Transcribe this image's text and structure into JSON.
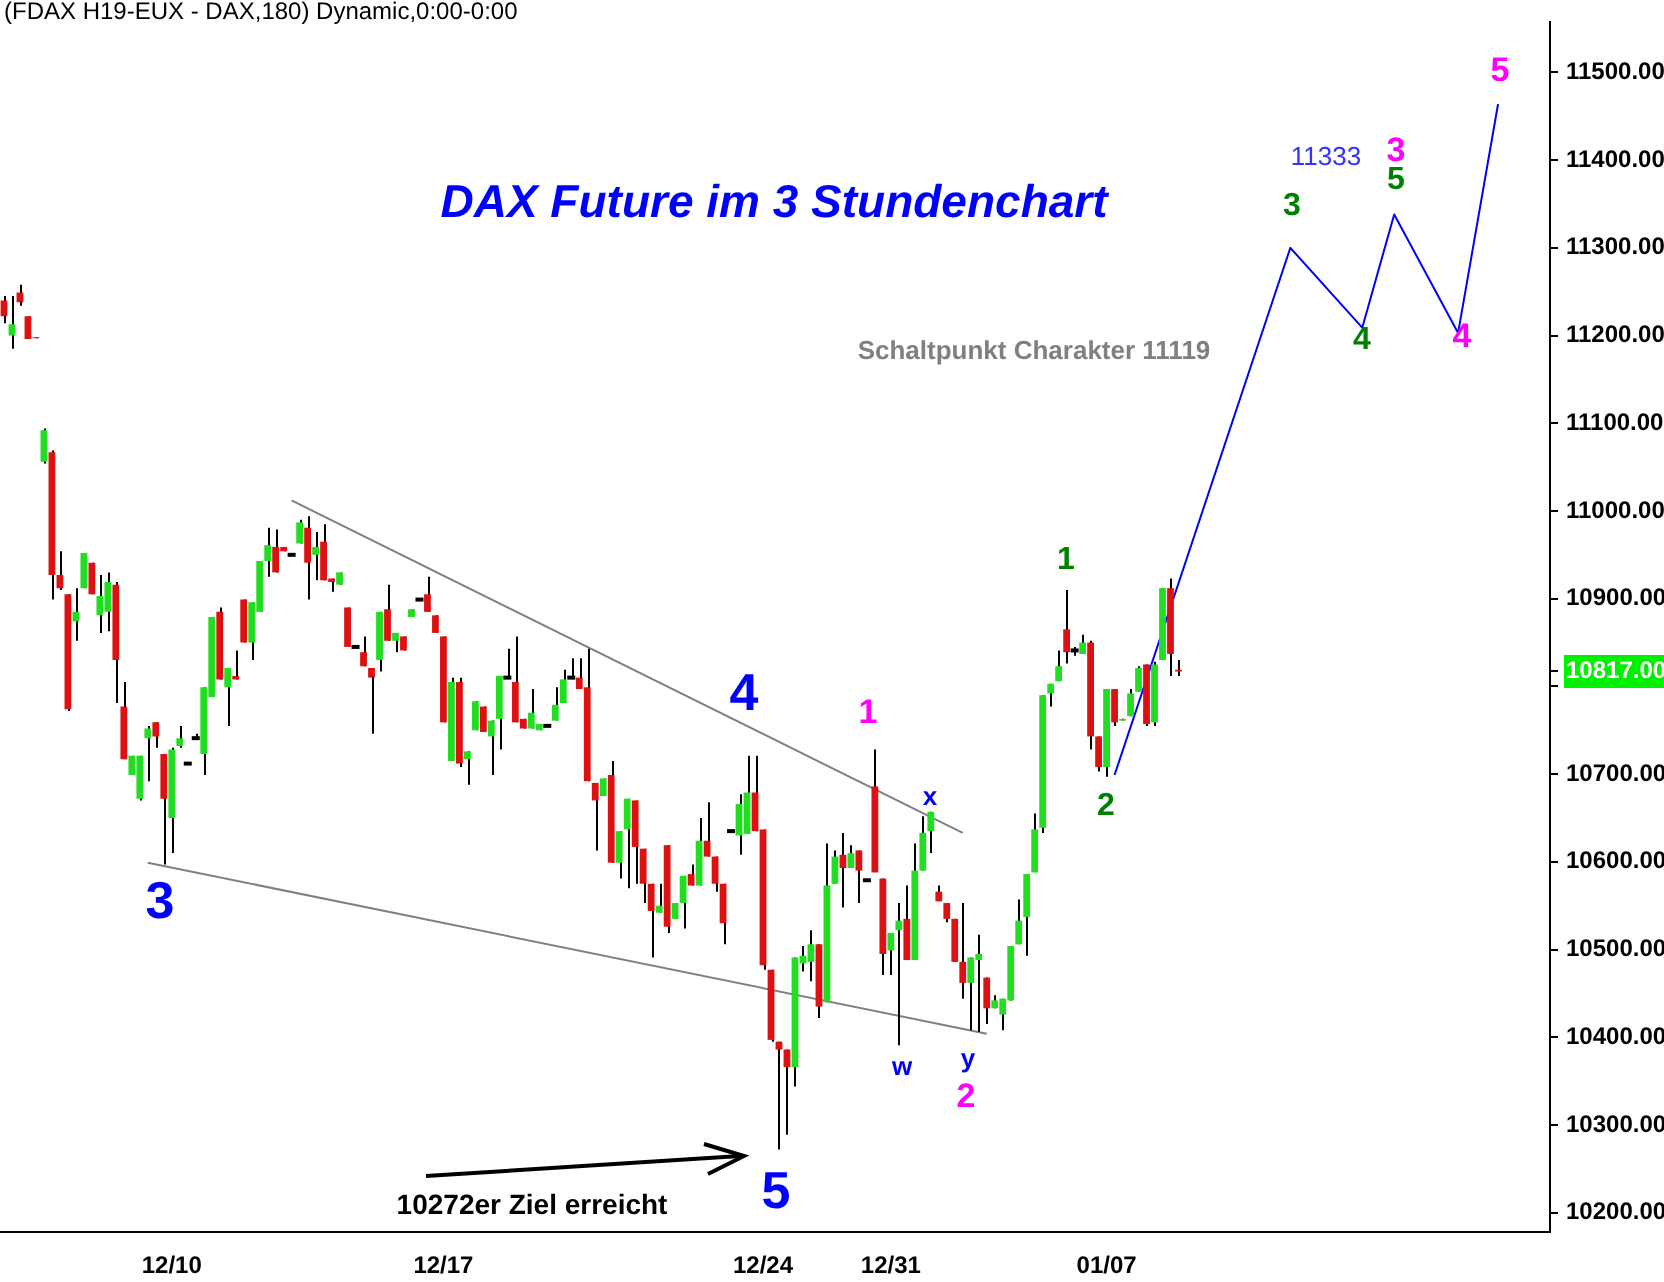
{
  "chart_data": {
    "type": "candlestick",
    "title": "DAX Future im 3 Stundenchart",
    "subtitle": "(FDAX H19-EUX - DAX,180) Dynamic,0:00-0:00",
    "categories": [
      null,
      null,
      null,
      null,
      null,
      null,
      null,
      null,
      null,
      null,
      null,
      null,
      null,
      null,
      null,
      null,
      null,
      null,
      null,
      null,
      null,
      "12/10",
      null,
      null,
      null,
      null,
      null,
      null,
      null,
      null,
      null,
      null,
      null,
      null,
      null,
      null,
      null,
      null,
      null,
      null,
      null,
      null,
      null,
      null,
      null,
      null,
      null,
      null,
      null,
      null,
      null,
      null,
      null,
      null,
      null,
      "12/17",
      null,
      null,
      null,
      null,
      null,
      null,
      null,
      null,
      null,
      null,
      null,
      null,
      null,
      null,
      null,
      null,
      null,
      null,
      null,
      null,
      null,
      null,
      null,
      null,
      null,
      null,
      null,
      null,
      null,
      null,
      null,
      null,
      null,
      null,
      null,
      null,
      null,
      null,
      null,
      "12/24",
      null,
      null,
      null,
      null,
      null,
      null,
      null,
      null,
      null,
      null,
      null,
      null,
      null,
      null,
      null,
      "12/31",
      null,
      null,
      null,
      null,
      null,
      null,
      null,
      null,
      null,
      null,
      null,
      null,
      null,
      null,
      null,
      null,
      null,
      null,
      null,
      null,
      null,
      null,
      null,
      null,
      null,
      null,
      "01/07",
      null,
      null,
      null,
      null,
      null,
      null,
      null,
      null,
      null,
      null,
      null,
      null,
      null,
      null,
      null,
      null,
      null,
      null,
      null,
      null,
      null,
      null,
      null,
      null,
      null,
      null,
      null,
      null,
      null,
      null,
      null,
      null,
      null,
      null,
      null,
      null,
      null,
      null,
      null,
      null,
      null,
      null,
      null,
      null,
      null,
      null,
      null,
      null,
      null,
      null,
      null,
      null,
      null,
      null,
      null
    ],
    "ohlc": [
      [
        11240,
        11245,
        11214,
        11222
      ],
      [
        11200,
        11245,
        11185,
        11213
      ],
      [
        11249,
        11258,
        11234,
        11238
      ],
      [
        11222,
        11222,
        11196,
        11196
      ],
      [
        11198,
        11198,
        11197,
        11197
      ],
      [
        11056,
        11094,
        11054,
        11092
      ],
      [
        11067,
        11069,
        10899,
        10927
      ],
      [
        10927,
        10954,
        10910,
        10912
      ],
      [
        10905,
        10905,
        10772,
        10774
      ],
      [
        10874,
        10912,
        10852,
        10885
      ],
      [
        10912,
        10952,
        10912,
        10952
      ],
      [
        10941,
        10941,
        10905,
        10905
      ],
      [
        10881,
        10927,
        10861,
        10903
      ],
      [
        10885,
        10930,
        10863,
        10919
      ],
      [
        10916,
        10919,
        10781,
        10830
      ],
      [
        10777,
        10805,
        10717,
        10717
      ],
      [
        10699,
        10721,
        10699,
        10721
      ],
      [
        10672,
        10721,
        10670,
        10721
      ],
      [
        10741,
        10755,
        10692,
        10752
      ],
      [
        10759,
        10759,
        10730,
        10743
      ],
      [
        10723,
        10723,
        10597,
        10672
      ],
      [
        10650,
        10730,
        10610,
        10728
      ],
      [
        10732,
        10755,
        10730,
        10741
      ],
      [
        10712,
        10712,
        10712,
        10712
      ],
      [
        10741,
        10746,
        10741,
        10741
      ],
      [
        10723,
        10799,
        10699,
        10799
      ],
      [
        10788,
        10879,
        10788,
        10879
      ],
      [
        10885,
        10890,
        10808,
        10808
      ],
      [
        10799,
        10821,
        10755,
        10821
      ],
      [
        10812,
        10841,
        10808,
        10808
      ],
      [
        10899,
        10899,
        10850,
        10850
      ],
      [
        10850,
        10896,
        10830,
        10896
      ],
      [
        10885,
        10943,
        10885,
        10943
      ],
      [
        10943,
        10981,
        10925,
        10961
      ],
      [
        10959,
        10979,
        10930,
        10930
      ],
      [
        10959,
        10959,
        10954,
        10954
      ],
      [
        10950,
        10950,
        10950,
        10950
      ],
      [
        10963,
        10990,
        10963,
        10987
      ],
      [
        10981,
        10994,
        10899,
        10941
      ],
      [
        10950,
        10976,
        10921,
        10959
      ],
      [
        10965,
        10985,
        10921,
        10921
      ],
      [
        10923,
        10923,
        10908,
        10919
      ],
      [
        10916,
        10930,
        10916,
        10930
      ],
      [
        10890,
        10890,
        10845,
        10845
      ],
      [
        10845,
        10845,
        10845,
        10845
      ],
      [
        10839,
        10857,
        10823,
        10823
      ],
      [
        10821,
        10821,
        10746,
        10810
      ],
      [
        10830,
        10885,
        10817,
        10885
      ],
      [
        10888,
        10916,
        10852,
        10852
      ],
      [
        10852,
        10861,
        10839,
        10861
      ],
      [
        10857,
        10857,
        10841,
        10841
      ],
      [
        10879,
        10888,
        10879,
        10888
      ],
      [
        10899,
        10899,
        10899,
        10899
      ],
      [
        10905,
        10925,
        10885,
        10885
      ],
      [
        10881,
        10881,
        10861,
        10861
      ],
      [
        10857,
        10857,
        10759,
        10759
      ],
      [
        10715,
        10810,
        10715,
        10805
      ],
      [
        10805,
        10810,
        10708,
        10712
      ],
      [
        10717,
        10726,
        10688,
        10726
      ],
      [
        10750,
        10783,
        10750,
        10783
      ],
      [
        10777,
        10777,
        10748,
        10748
      ],
      [
        10743,
        10761,
        10699,
        10761
      ],
      [
        10763,
        10812,
        10728,
        10812
      ],
      [
        10810,
        10843,
        10810,
        10810
      ],
      [
        10805,
        10857,
        10759,
        10759
      ],
      [
        10763,
        10763,
        10752,
        10752
      ],
      [
        10752,
        10797,
        10752,
        10770
      ],
      [
        10750,
        10757,
        10750,
        10757
      ],
      [
        10755,
        10755,
        10755,
        10755
      ],
      [
        10761,
        10799,
        10761,
        10779
      ],
      [
        10781,
        10819,
        10781,
        10808
      ],
      [
        10810,
        10832,
        10810,
        10810
      ],
      [
        10810,
        10832,
        10797,
        10797
      ],
      [
        10799,
        10843,
        10692,
        10692
      ],
      [
        10690,
        10690,
        10613,
        10670
      ],
      [
        10675,
        10695,
        10675,
        10695
      ],
      [
        10699,
        10715,
        10599,
        10599
      ],
      [
        10599,
        10635,
        10581,
        10635
      ],
      [
        10637,
        10672,
        10570,
        10672
      ],
      [
        10670,
        10670,
        10575,
        10617
      ],
      [
        10615,
        10615,
        10553,
        10575
      ],
      [
        10575,
        10575,
        10491,
        10544
      ],
      [
        10542,
        10575,
        10542,
        10550
      ],
      [
        10619,
        10619,
        10519,
        10526
      ],
      [
        10535,
        10553,
        10535,
        10553
      ],
      [
        10553,
        10584,
        10524,
        10584
      ],
      [
        10586,
        10597,
        10573,
        10573
      ],
      [
        10573,
        10650,
        10573,
        10624
      ],
      [
        10624,
        10668,
        10606,
        10606
      ],
      [
        10606,
        10606,
        10566,
        10575
      ],
      [
        10575,
        10575,
        10506,
        10530
      ],
      [
        10635,
        10635,
        10635,
        10635
      ],
      [
        10630,
        10677,
        10608,
        10666
      ],
      [
        10632,
        10721,
        10632,
        10679
      ],
      [
        10679,
        10721,
        10635,
        10635
      ],
      [
        10637,
        10637,
        10477,
        10482
      ],
      [
        10477,
        10477,
        10395,
        10397
      ],
      [
        10395,
        10395,
        10272,
        10386
      ],
      [
        10386,
        10386,
        10289,
        10366
      ],
      [
        10366,
        10491,
        10344,
        10491
      ],
      [
        10484,
        10504,
        10475,
        10493
      ],
      [
        10486,
        10522,
        10464,
        10506
      ],
      [
        10506,
        10506,
        10422,
        10435
      ],
      [
        10440,
        10621,
        10440,
        10573
      ],
      [
        10575,
        10613,
        10575,
        10606
      ],
      [
        10608,
        10633,
        10548,
        10593
      ],
      [
        10593,
        10619,
        10593,
        10610
      ],
      [
        10613,
        10613,
        10553,
        10590
      ],
      [
        10579,
        10579,
        10579,
        10579
      ],
      [
        10686,
        10728,
        10588,
        10588
      ],
      [
        10581,
        10581,
        10471,
        10495
      ],
      [
        10499,
        10519,
        10471,
        10519
      ],
      [
        10522,
        10553,
        10391,
        10533
      ],
      [
        10535,
        10573,
        10488,
        10488
      ],
      [
        10488,
        10621,
        10488,
        10590
      ],
      [
        10590,
        10652,
        10590,
        10633
      ],
      [
        10635,
        10657,
        10610,
        10657
      ],
      [
        10566,
        10573,
        10555,
        10555
      ],
      [
        10553,
        10553,
        10531,
        10535
      ],
      [
        10535,
        10535,
        10486,
        10486
      ],
      [
        10486,
        10553,
        10444,
        10462
      ],
      [
        10462,
        10491,
        10408,
        10491
      ],
      [
        10488,
        10517,
        10406,
        10495
      ],
      [
        10468,
        10468,
        10415,
        10433
      ],
      [
        10433,
        10448,
        10433,
        10442
      ],
      [
        10426,
        10444,
        10408,
        10444
      ],
      [
        10442,
        10504,
        10442,
        10504
      ],
      [
        10506,
        10557,
        10506,
        10533
      ],
      [
        10537,
        10586,
        10493,
        10586
      ],
      [
        10588,
        10655,
        10588,
        10637
      ],
      [
        10639,
        10790,
        10633,
        10790
      ],
      [
        10792,
        10803,
        10777,
        10803
      ],
      [
        10806,
        10841,
        10806,
        10823
      ],
      [
        10865,
        10910,
        10826,
        10839
      ],
      [
        10841,
        10845,
        10835,
        10841
      ],
      [
        10837,
        10859,
        10837,
        10850
      ],
      [
        10850,
        10852,
        10728,
        10743
      ],
      [
        10743,
        10743,
        10703,
        10708
      ],
      [
        10708,
        10797,
        10697,
        10797
      ],
      [
        10797,
        10797,
        10755,
        10759
      ],
      [
        10761,
        10763,
        10761,
        10763
      ],
      [
        10766,
        10797,
        10766,
        10792
      ],
      [
        10794,
        10823,
        10794,
        10821
      ],
      [
        10825,
        10825,
        10755,
        10757
      ],
      [
        10759,
        10828,
        10755,
        10825
      ],
      [
        10830,
        10912,
        10830,
        10912
      ],
      [
        10912,
        10923,
        10812,
        10837
      ],
      [
        10819,
        10830,
        10812,
        10817
      ],
      null,
      null,
      null,
      null,
      null,
      null,
      null,
      null,
      null,
      null,
      null,
      null,
      null,
      null,
      null,
      null,
      null,
      null,
      null,
      null,
      null,
      null,
      null,
      null,
      null,
      null,
      null,
      null,
      null,
      null,
      null,
      null,
      null,
      null,
      null,
      null,
      null,
      null,
      null,
      null,
      null,
      null,
      null,
      null,
      null,
      null
    ],
    "series": [
      {
        "type": "line",
        "color": "#0000ff",
        "values": [
          null,
          null,
          null,
          null,
          null,
          null,
          null,
          null,
          null,
          null,
          null,
          null,
          null,
          null,
          null,
          null,
          null,
          null,
          null,
          null,
          null,
          null,
          null,
          null,
          null,
          null,
          null,
          null,
          null,
          null,
          null,
          null,
          null,
          null,
          null,
          null,
          null,
          null,
          null,
          null,
          null,
          null,
          null,
          null,
          null,
          null,
          null,
          null,
          null,
          null,
          null,
          null,
          null,
          null,
          null,
          null,
          null,
          null,
          null,
          null,
          null,
          null,
          null,
          null,
          null,
          null,
          null,
          null,
          null,
          null,
          null,
          null,
          null,
          null,
          null,
          null,
          null,
          null,
          null,
          null,
          null,
          null,
          null,
          null,
          null,
          null,
          null,
          null,
          null,
          null,
          null,
          null,
          null,
          null,
          null,
          null,
          null,
          null,
          null,
          null,
          null,
          null,
          null,
          null,
          null,
          null,
          null,
          null,
          null,
          null,
          null,
          null,
          null,
          null,
          null,
          null,
          null,
          null,
          null,
          null,
          null,
          null,
          null,
          null,
          null,
          null,
          null,
          null,
          null,
          null,
          null,
          null,
          null,
          null,
          null,
          null,
          null,
          null,
          null,
          10699,
          null,
          null,
          null,
          null,
          null,
          null,
          null,
          null,
          null,
          null,
          null,
          null,
          null,
          null,
          null,
          null,
          null,
          null,
          null,
          null,
          null,
          11300,
          null,
          null,
          null,
          null,
          null,
          null,
          null,
          null,
          11209,
          null,
          null,
          null,
          11338,
          null,
          null,
          null,
          null,
          null,
          null,
          null,
          11203,
          null,
          null,
          null,
          null,
          11464,
          null,
          null,
          null,
          null,
          null,
          null
        ]
      },
      {
        "type": "line",
        "color": "#808080",
        "values": [
          null,
          null,
          null,
          null,
          null,
          null,
          null,
          null,
          null,
          null,
          null,
          null,
          null,
          null,
          null,
          null,
          null,
          null,
          null,
          null,
          null,
          null,
          null,
          null,
          null,
          null,
          null,
          null,
          null,
          null,
          null,
          null,
          null,
          null,
          null,
          null,
          11012,
          null,
          null,
          null,
          null,
          null,
          null,
          null,
          null,
          null,
          null,
          null,
          null,
          null,
          null,
          null,
          null,
          null,
          null,
          null,
          null,
          null,
          null,
          null,
          null,
          null,
          null,
          null,
          null,
          null,
          null,
          null,
          null,
          null,
          null,
          null,
          null,
          null,
          null,
          null,
          null,
          null,
          null,
          null,
          null,
          null,
          null,
          null,
          null,
          null,
          null,
          null,
          null,
          null,
          null,
          null,
          null,
          null,
          null,
          null,
          null,
          null,
          null,
          null,
          null,
          null,
          null,
          null,
          null,
          null,
          null,
          null,
          null,
          null,
          null,
          null,
          null,
          null,
          null,
          null,
          null,
          null,
          null,
          null,
          10633,
          null,
          null,
          null,
          null,
          null,
          null,
          null,
          null,
          null,
          null,
          null,
          null,
          null,
          null,
          null,
          null,
          null,
          null,
          null,
          null,
          null,
          null,
          null,
          null,
          null,
          null,
          null,
          null,
          null,
          null,
          null,
          null,
          null,
          null,
          null,
          null,
          null,
          null,
          null,
          null,
          null,
          null,
          null,
          null,
          null,
          null,
          null,
          null,
          null,
          null,
          null,
          null,
          null,
          null,
          null,
          null,
          null,
          null,
          null,
          null,
          null,
          null,
          null,
          null,
          null,
          null,
          null,
          null,
          null,
          null,
          null,
          null,
          null
        ]
      },
      {
        "type": "line",
        "color": "#808080",
        "values": [
          null,
          null,
          null,
          null,
          null,
          null,
          null,
          null,
          null,
          null,
          null,
          null,
          null,
          null,
          null,
          null,
          null,
          null,
          10599,
          null,
          null,
          null,
          null,
          null,
          null,
          null,
          null,
          null,
          null,
          null,
          null,
          null,
          null,
          null,
          null,
          null,
          null,
          null,
          null,
          null,
          null,
          null,
          null,
          null,
          null,
          null,
          null,
          null,
          null,
          null,
          null,
          null,
          null,
          null,
          null,
          null,
          null,
          null,
          null,
          null,
          null,
          null,
          null,
          null,
          null,
          null,
          null,
          null,
          null,
          null,
          null,
          null,
          null,
          null,
          null,
          null,
          null,
          null,
          null,
          null,
          null,
          null,
          null,
          null,
          null,
          null,
          null,
          null,
          null,
          null,
          null,
          null,
          null,
          null,
          null,
          null,
          null,
          null,
          null,
          null,
          null,
          null,
          null,
          null,
          null,
          null,
          null,
          null,
          null,
          null,
          null,
          null,
          null,
          null,
          null,
          null,
          null,
          null,
          null,
          null,
          null,
          null,
          null,
          10404,
          null,
          null,
          null,
          null,
          null,
          null,
          null,
          null,
          null,
          null,
          null,
          null,
          null,
          null,
          null,
          null,
          null,
          null,
          null,
          null,
          null,
          null,
          null,
          null,
          null,
          null,
          null,
          null,
          null,
          null,
          null,
          null,
          null,
          null,
          null,
          null,
          null,
          null,
          null,
          null,
          null,
          null,
          null,
          null,
          null,
          null,
          null,
          null,
          null,
          null,
          null,
          null,
          null,
          null,
          null,
          null,
          null,
          null,
          null,
          null,
          null,
          null,
          null,
          null,
          null,
          null,
          null,
          null,
          null,
          null
        ]
      }
    ],
    "ylim": [
      10178,
      11557
    ],
    "yticks": [
      {
        "value": 10200,
        "label": "10200.00"
      },
      {
        "value": 10300,
        "label": "10300.00"
      },
      {
        "value": 10400,
        "label": "10400.00"
      },
      {
        "value": 10500,
        "label": "10500.00"
      },
      {
        "value": 10600,
        "label": "10600.00"
      },
      {
        "value": 10700,
        "label": "10700.00"
      },
      {
        "value": 10800,
        "label": null
      },
      {
        "value": 10817,
        "label": "10817.00"
      },
      {
        "value": 10900,
        "label": "10900.00"
      },
      {
        "value": 11000,
        "label": "11000.00"
      },
      {
        "value": 11100,
        "label": "11100.00"
      },
      {
        "value": 11200,
        "label": "11200.00"
      },
      {
        "value": 11300,
        "label": "11300.00"
      },
      {
        "value": 11400,
        "label": "11400.00"
      },
      {
        "value": 11500,
        "label": "11500.00"
      }
    ],
    "annotations": [
      "3",
      "4",
      "5",
      "1",
      "x",
      "w",
      "y",
      "2",
      "1",
      "2",
      "3",
      "4",
      "5",
      "3",
      "4",
      "5",
      "11333",
      "Schaltpunkt Charakter 11119",
      "10272er Ziel erreicht"
    ],
    "grid": false,
    "legend": false
  }
}
